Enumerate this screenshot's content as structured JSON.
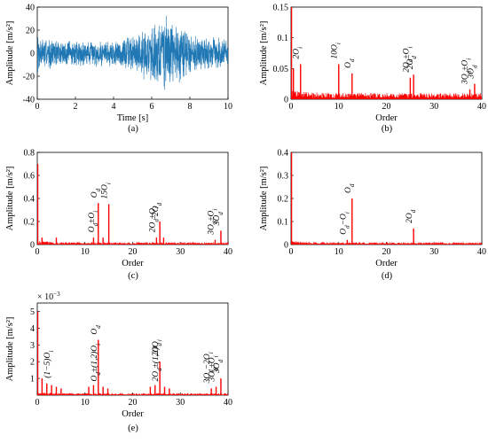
{
  "chart_data": [
    {
      "id": "a",
      "type": "line",
      "panel_label": "(a)",
      "xlabel": "Time [s]",
      "ylabel": "Amplitude [m/s²]",
      "xlim": [
        0,
        10
      ],
      "ylim": [
        -40,
        40
      ],
      "xticks": [
        "0",
        "2",
        "4",
        "6",
        "8",
        "10"
      ],
      "yticks": [
        "-40",
        "-20",
        "0",
        "20",
        "40"
      ],
      "series_color": "#1f77b4",
      "envelope": [
        {
          "t": 0.0,
          "amp": 20
        },
        {
          "t": 0.3,
          "amp": 15
        },
        {
          "t": 1.0,
          "amp": 13
        },
        {
          "t": 2.0,
          "amp": 12
        },
        {
          "t": 3.0,
          "amp": 12
        },
        {
          "t": 4.0,
          "amp": 13
        },
        {
          "t": 4.5,
          "amp": 14
        },
        {
          "t": 5.0,
          "amp": 18
        },
        {
          "t": 5.8,
          "amp": 25
        },
        {
          "t": 6.3,
          "amp": 33
        },
        {
          "t": 6.6,
          "amp": 38
        },
        {
          "t": 7.0,
          "amp": 30
        },
        {
          "t": 7.5,
          "amp": 28
        },
        {
          "t": 8.0,
          "amp": 20
        },
        {
          "t": 8.5,
          "amp": 16
        },
        {
          "t": 9.0,
          "amp": 15
        },
        {
          "t": 10.0,
          "amp": 15
        }
      ]
    },
    {
      "id": "b",
      "type": "bar",
      "panel_label": "(b)",
      "xlabel": "Order",
      "ylabel": "Amplitude [m/s²]",
      "xlim": [
        0,
        40
      ],
      "ylim": [
        0,
        0.15
      ],
      "xticks": [
        "0",
        "10",
        "20",
        "30",
        "40"
      ],
      "yticks": [
        "0",
        "0.05",
        "0.1",
        "0.15"
      ],
      "yticks_v": [
        0,
        0.05,
        0.1,
        0.15
      ],
      "series_color": "#ff0000",
      "noise_level": 0.01,
      "peaks": [
        {
          "x": 0.1,
          "y": 0.15
        },
        {
          "x": 0.5,
          "y": 0.05
        },
        {
          "x": 2.0,
          "y": 0.057
        },
        {
          "x": 10.0,
          "y": 0.057
        },
        {
          "x": 12.8,
          "y": 0.042
        },
        {
          "x": 25.0,
          "y": 0.035
        },
        {
          "x": 25.7,
          "y": 0.04
        },
        {
          "x": 37.5,
          "y": 0.016
        },
        {
          "x": 38.5,
          "y": 0.025
        }
      ],
      "annotations": [
        {
          "text": "2O",
          "sub": "i",
          "x": 2.0,
          "y": 0.057
        },
        {
          "text": "10O",
          "sub": "i",
          "x": 10.0,
          "y": 0.057
        },
        {
          "text": "O",
          "sub": "d",
          "x": 12.8,
          "y": 0.042
        },
        {
          "text": "2O",
          "sub": "d",
          "suffix": "±O",
          "suffix_sub": "i",
          "x": 25.0,
          "y": 0.035
        },
        {
          "text": "2O",
          "sub": "d",
          "x": 25.9,
          "y": 0.04
        },
        {
          "text": "3O",
          "sub": "d",
          "suffix": "±O",
          "suffix_sub": "i",
          "x": 37.3,
          "y": 0.016
        },
        {
          "text": "3O",
          "sub": "d",
          "x": 38.6,
          "y": 0.025
        }
      ]
    },
    {
      "id": "c",
      "type": "bar",
      "panel_label": "(c)",
      "xlabel": "Order",
      "ylabel": "Amplitude [m/s²]",
      "xlim": [
        0,
        40
      ],
      "ylim": [
        0,
        0.8
      ],
      "xticks": [
        "0",
        "10",
        "20",
        "30",
        "40"
      ],
      "yticks": [
        "0",
        "0.2",
        "0.4",
        "0.6",
        "0.8"
      ],
      "yticks_v": [
        0,
        0.2,
        0.4,
        0.6,
        0.8
      ],
      "series_color": "#ff0000",
      "noise_level": 0.02,
      "peaks": [
        {
          "x": 0.1,
          "y": 0.7
        },
        {
          "x": 1.0,
          "y": 0.06
        },
        {
          "x": 4.0,
          "y": 0.06
        },
        {
          "x": 11.8,
          "y": 0.06
        },
        {
          "x": 12.8,
          "y": 0.36
        },
        {
          "x": 13.8,
          "y": 0.06
        },
        {
          "x": 15.0,
          "y": 0.35
        },
        {
          "x": 25.0,
          "y": 0.06
        },
        {
          "x": 25.7,
          "y": 0.2
        },
        {
          "x": 26.5,
          "y": 0.06
        },
        {
          "x": 37.3,
          "y": 0.04
        },
        {
          "x": 38.5,
          "y": 0.12
        }
      ],
      "annotations": [
        {
          "text": "O",
          "sub": "d",
          "suffix": "±O",
          "suffix_sub": "i",
          "x": 12.3,
          "y": 0.06
        },
        {
          "text": "O",
          "sub": "d",
          "x": 12.8,
          "y": 0.36
        },
        {
          "text": "15O",
          "sub": "i",
          "x": 15.0,
          "y": 0.35
        },
        {
          "text": "2O",
          "sub": "d",
          "suffix": "±O",
          "suffix_sub": "i",
          "x": 25.0,
          "y": 0.06
        },
        {
          "text": "2O",
          "sub": "d",
          "x": 25.7,
          "y": 0.2
        },
        {
          "text": "3O",
          "sub": "d",
          "suffix": "±O",
          "suffix_sub": "i",
          "x": 37.3,
          "y": 0.04
        },
        {
          "text": "3O",
          "sub": "d",
          "x": 38.5,
          "y": 0.12
        }
      ]
    },
    {
      "id": "d",
      "type": "bar",
      "panel_label": "(d)",
      "xlabel": "Order",
      "ylabel": "Amplitude [m/s²]",
      "xlim": [
        0,
        40
      ],
      "ylim": [
        0,
        0.4
      ],
      "xticks": [
        "0",
        "10",
        "20",
        "30",
        "40"
      ],
      "yticks": [
        "0",
        "0.1",
        "0.2",
        "0.3",
        "0.4"
      ],
      "yticks_v": [
        0,
        0.1,
        0.2,
        0.3,
        0.4
      ],
      "series_color": "#ff0000",
      "noise_level": 0.01,
      "peaks": [
        {
          "x": 0.1,
          "y": 0.4
        },
        {
          "x": 11.8,
          "y": 0.02
        },
        {
          "x": 12.8,
          "y": 0.2
        },
        {
          "x": 25.7,
          "y": 0.07
        }
      ],
      "annotations": [
        {
          "text": "O",
          "sub": "d",
          "suffix": "−O",
          "suffix_sub": "i",
          "x": 11.8,
          "y": 0.02
        },
        {
          "text": "O",
          "sub": "d",
          "x": 12.8,
          "y": 0.2
        },
        {
          "text": "2O",
          "sub": "d",
          "x": 25.7,
          "y": 0.07
        }
      ]
    },
    {
      "id": "e",
      "type": "bar",
      "panel_label": "(e)",
      "xlabel": "Order",
      "ylabel": "Amplitude [m/s²]",
      "exponent_label": "× 10",
      "exponent_power": "−3",
      "xlim": [
        0,
        40
      ],
      "ylim": [
        0,
        5.5
      ],
      "xticks": [
        "0",
        "10",
        "20",
        "30",
        "40"
      ],
      "yticks": [
        "1",
        "2",
        "3",
        "4",
        "5"
      ],
      "yticks_v": [
        1,
        2,
        3,
        4,
        5
      ],
      "series_color": "#ff0000",
      "noise_level": 0.12,
      "peaks": [
        {
          "x": 0.1,
          "y": 5.0
        },
        {
          "x": 1.0,
          "y": 1.0
        },
        {
          "x": 2.0,
          "y": 0.7
        },
        {
          "x": 3.0,
          "y": 0.6
        },
        {
          "x": 4.0,
          "y": 0.5
        },
        {
          "x": 5.0,
          "y": 0.4
        },
        {
          "x": 10.8,
          "y": 0.5
        },
        {
          "x": 11.8,
          "y": 0.6
        },
        {
          "x": 12.8,
          "y": 3.3
        },
        {
          "x": 13.8,
          "y": 0.5
        },
        {
          "x": 14.8,
          "y": 0.4
        },
        {
          "x": 23.7,
          "y": 0.5
        },
        {
          "x": 24.7,
          "y": 0.6
        },
        {
          "x": 25.7,
          "y": 2.0
        },
        {
          "x": 26.7,
          "y": 0.5
        },
        {
          "x": 27.7,
          "y": 0.4
        },
        {
          "x": 36.5,
          "y": 0.4
        },
        {
          "x": 37.5,
          "y": 0.5
        },
        {
          "x": 38.5,
          "y": 1.0
        }
      ],
      "annotations": [
        {
          "text": "(1−5)O",
          "sub": "i",
          "x": 3.0,
          "y": 0.7
        },
        {
          "text": "O",
          "sub": "d",
          "suffix": "±(1,2)O",
          "suffix_sub": "i",
          "x": 12.8,
          "y": 0.5
        },
        {
          "text": "O",
          "sub": "d",
          "x": 12.8,
          "y": 3.3
        },
        {
          "text": "2O",
          "sub": "d",
          "suffix": "±(1,2)O",
          "suffix_sub": "i",
          "x": 25.7,
          "y": 0.5
        },
        {
          "text": "2O",
          "sub": "d",
          "x": 25.7,
          "y": 2.0
        },
        {
          "text": "3O",
          "sub": "d",
          "suffix": "−2O",
          "suffix_sub": "i",
          "x": 36.5,
          "y": 0.4
        },
        {
          "text": "3O",
          "sub": "d",
          "suffix": "±O",
          "suffix_sub": "i",
          "x": 37.5,
          "y": 0.5
        },
        {
          "text": "3O",
          "sub": "d",
          "x": 38.5,
          "y": 1.0
        }
      ]
    }
  ]
}
